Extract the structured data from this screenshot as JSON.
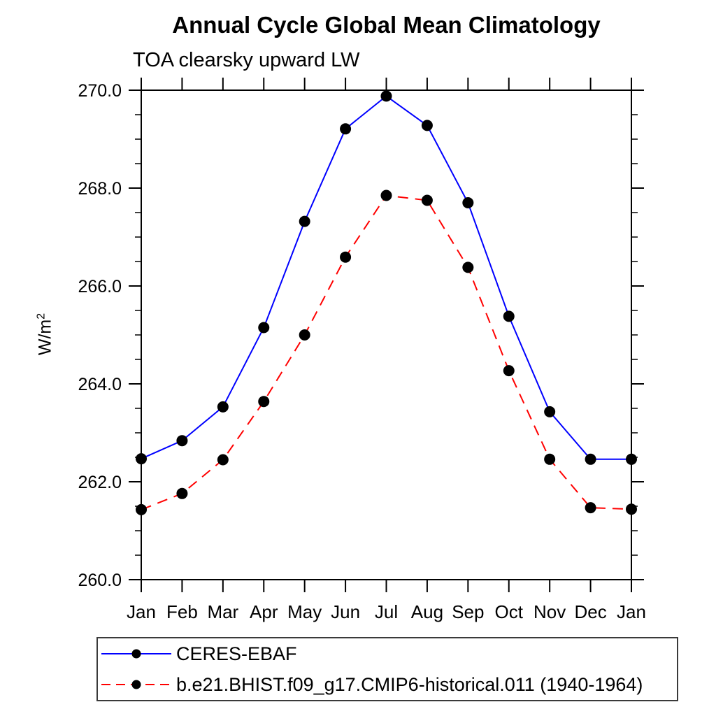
{
  "chart_data": {
    "type": "line",
    "title": "Annual Cycle Global Mean Climatology",
    "subtitle": "TOA clearsky upward LW",
    "ylabel_base": "W/m",
    "ylabel_sup": "2",
    "categories": [
      "Jan",
      "Feb",
      "Mar",
      "Apr",
      "May",
      "Jun",
      "Jul",
      "Aug",
      "Sep",
      "Oct",
      "Nov",
      "Dec",
      "Jan"
    ],
    "ylim": [
      260.0,
      270.0
    ],
    "ytick_major": 2.0,
    "ytick_minor": 0.5,
    "grid": false,
    "legend_position": "bottom-left",
    "axis_color": "#000000",
    "series": [
      {
        "name": "CERES-EBAF",
        "color": "#0000ff",
        "line_style": "solid",
        "marker": "filled-circle",
        "marker_color": "#000000",
        "values": [
          262.47,
          262.84,
          263.53,
          265.15,
          267.32,
          269.21,
          269.88,
          269.28,
          267.7,
          265.38,
          263.43,
          262.46,
          262.46
        ]
      },
      {
        "name": "b.e21.BHIST.f09_g17.CMIP6-historical.011 (1940-1964)",
        "color": "#ff0000",
        "line_style": "dashed",
        "marker": "filled-circle",
        "marker_color": "#000000",
        "values": [
          261.43,
          261.76,
          262.45,
          263.64,
          265.0,
          266.59,
          267.85,
          267.75,
          266.38,
          264.27,
          262.46,
          261.47,
          261.44
        ]
      }
    ]
  }
}
